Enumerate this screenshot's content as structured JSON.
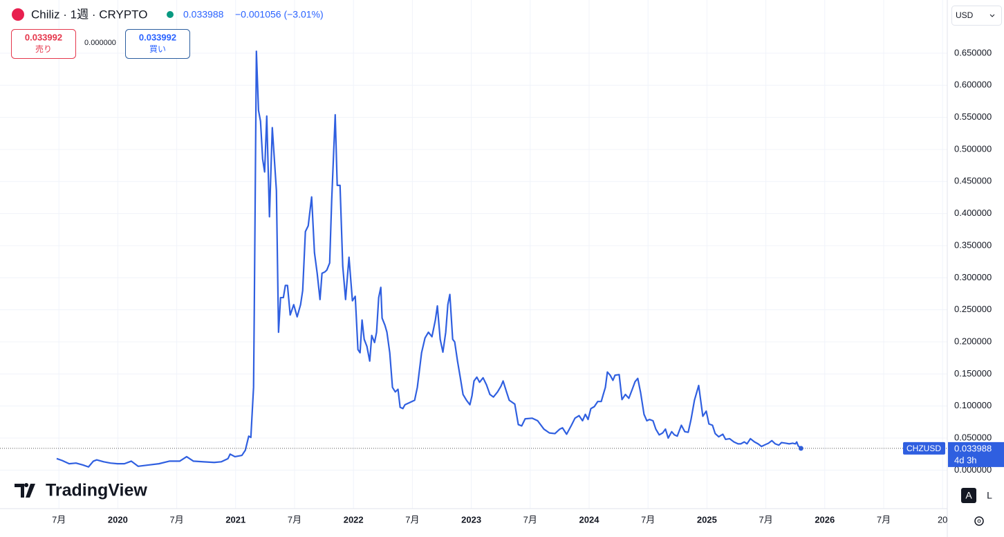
{
  "header": {
    "symbol_title": "Chiliz · 1週 · CRYPTO",
    "last": "0.033988",
    "change": "−0.001056 (−3.01%)"
  },
  "trade_panel": {
    "sell_price": "0.033992",
    "sell_label": "売り",
    "spread": "0.000000",
    "buy_price": "0.033992",
    "buy_label": "買い"
  },
  "currency": "USD",
  "last_price": {
    "value": 0.033988,
    "countdown": "4d 3h"
  },
  "scale_buttons": [
    "A",
    "L"
  ],
  "brand": "TradingView",
  "chart_data": {
    "type": "line",
    "x": [
      2019.481,
      2019.528,
      2019.587,
      2019.645,
      2019.704,
      2019.751,
      2019.792,
      2019.821,
      2019.88,
      2019.938,
      2019.997,
      2020.056,
      2020.114,
      2020.173,
      2020.261,
      2020.349,
      2020.437,
      2020.525,
      2020.584,
      2020.642,
      2020.73,
      2020.818,
      2020.877,
      2020.935,
      2020.953,
      2020.994,
      2021.053,
      2021.082,
      2021.111,
      2021.129,
      2021.152,
      2021.158,
      2021.176,
      2021.194,
      2021.211,
      2021.229,
      2021.246,
      2021.264,
      2021.287,
      2021.311,
      2021.346,
      2021.364,
      2021.381,
      2021.405,
      2021.422,
      2021.44,
      2021.463,
      2021.493,
      2021.522,
      2021.551,
      2021.569,
      2021.592,
      2021.616,
      2021.645,
      2021.669,
      2021.692,
      2021.716,
      2021.733,
      2021.757,
      2021.774,
      2021.798,
      2021.815,
      2021.845,
      2021.862,
      2021.886,
      2021.909,
      2021.933,
      2021.962,
      2021.991,
      2022.015,
      2022.038,
      2022.056,
      2022.073,
      2022.091,
      2022.114,
      2022.138,
      2022.155,
      2022.179,
      2022.196,
      2022.214,
      2022.232,
      2022.243,
      2022.267,
      2022.284,
      2022.308,
      2022.331,
      2022.355,
      2022.378,
      2022.396,
      2022.419,
      2022.437,
      2022.472,
      2022.519,
      2022.542,
      2022.578,
      2022.607,
      2022.636,
      2022.666,
      2022.695,
      2022.712,
      2022.736,
      2022.759,
      2022.783,
      2022.801,
      2022.818,
      2022.842,
      2022.859,
      2022.883,
      2022.906,
      2022.93,
      2022.959,
      2022.988,
      2023.006,
      2023.023,
      2023.047,
      2023.07,
      2023.1,
      2023.129,
      2023.158,
      2023.188,
      2023.223,
      2023.252,
      2023.27,
      2023.299,
      2023.322,
      2023.369,
      2023.399,
      2023.428,
      2023.457,
      2023.516,
      2023.563,
      2023.616,
      2023.663,
      2023.71,
      2023.751,
      2023.774,
      2023.809,
      2023.85,
      2023.88,
      2023.915,
      2023.944,
      2023.968,
      2023.991,
      2024.015,
      2024.044,
      2024.073,
      2024.103,
      2024.12,
      2024.138,
      2024.155,
      2024.179,
      2024.202,
      2024.22,
      2024.255,
      2024.279,
      2024.308,
      2024.337,
      2024.366,
      2024.39,
      2024.413,
      2024.437,
      2024.466,
      2024.49,
      2024.513,
      2024.542,
      2024.566,
      2024.595,
      2024.624,
      2024.648,
      2024.671,
      2024.701,
      2024.724,
      2024.748,
      2024.783,
      2024.812,
      2024.841,
      2024.865,
      2024.894,
      2024.93,
      2024.965,
      2024.994,
      2025.017,
      2025.047,
      2025.07,
      2025.1,
      2025.135,
      2025.158,
      2025.193,
      2025.229,
      2025.264,
      2025.287,
      2025.317,
      2025.34,
      2025.369,
      2025.404,
      2025.434,
      2025.463,
      2025.498,
      2025.522,
      2025.551,
      2025.58,
      2025.61,
      2025.633,
      2025.668,
      2025.698,
      2025.727,
      2025.751,
      2025.762,
      2025.774,
      2025.798
    ],
    "series": [
      {
        "name": "CHZUSD",
        "color": "#2f5fe0",
        "values": [
          0.018,
          0.015,
          0.01,
          0.011,
          0.008,
          0.005,
          0.014,
          0.016,
          0.013,
          0.011,
          0.01,
          0.01,
          0.014,
          0.006,
          0.008,
          0.01,
          0.014,
          0.014,
          0.021,
          0.014,
          0.013,
          0.012,
          0.013,
          0.018,
          0.025,
          0.021,
          0.023,
          0.031,
          0.053,
          0.051,
          0.129,
          0.247,
          0.653,
          0.561,
          0.544,
          0.485,
          0.465,
          0.552,
          0.395,
          0.534,
          0.436,
          0.215,
          0.269,
          0.269,
          0.288,
          0.288,
          0.242,
          0.258,
          0.239,
          0.258,
          0.28,
          0.372,
          0.381,
          0.426,
          0.339,
          0.307,
          0.266,
          0.307,
          0.309,
          0.312,
          0.323,
          0.42,
          0.554,
          0.444,
          0.444,
          0.318,
          0.266,
          0.332,
          0.264,
          0.271,
          0.188,
          0.183,
          0.234,
          0.204,
          0.193,
          0.17,
          0.21,
          0.199,
          0.215,
          0.269,
          0.285,
          0.237,
          0.226,
          0.215,
          0.183,
          0.129,
          0.122,
          0.126,
          0.098,
          0.096,
          0.102,
          0.105,
          0.109,
          0.129,
          0.183,
          0.206,
          0.215,
          0.208,
          0.234,
          0.256,
          0.204,
          0.184,
          0.215,
          0.258,
          0.274,
          0.204,
          0.2,
          0.17,
          0.145,
          0.118,
          0.109,
          0.102,
          0.116,
          0.139,
          0.145,
          0.137,
          0.144,
          0.133,
          0.118,
          0.114,
          0.122,
          0.131,
          0.139,
          0.122,
          0.109,
          0.103,
          0.071,
          0.069,
          0.08,
          0.081,
          0.077,
          0.064,
          0.058,
          0.057,
          0.064,
          0.066,
          0.056,
          0.07,
          0.081,
          0.085,
          0.077,
          0.087,
          0.079,
          0.096,
          0.099,
          0.107,
          0.107,
          0.118,
          0.129,
          0.153,
          0.148,
          0.14,
          0.148,
          0.149,
          0.11,
          0.118,
          0.112,
          0.126,
          0.138,
          0.143,
          0.121,
          0.087,
          0.077,
          0.079,
          0.077,
          0.064,
          0.055,
          0.058,
          0.064,
          0.05,
          0.06,
          0.055,
          0.053,
          0.07,
          0.06,
          0.059,
          0.079,
          0.109,
          0.132,
          0.084,
          0.092,
          0.072,
          0.07,
          0.057,
          0.052,
          0.056,
          0.048,
          0.049,
          0.044,
          0.041,
          0.041,
          0.044,
          0.041,
          0.049,
          0.044,
          0.041,
          0.037,
          0.04,
          0.042,
          0.046,
          0.041,
          0.039,
          0.043,
          0.042,
          0.041,
          0.042,
          0.041,
          0.044,
          0.038,
          0.033988
        ]
      }
    ],
    "xlim": [
      2019.0,
      2027.04
    ],
    "ylim": [
      -0.06,
      0.733
    ],
    "xticks": [
      {
        "value": 2019.5,
        "label": "7月"
      },
      2020,
      {
        "value": 2020.5,
        "label": "7月"
      },
      2021,
      {
        "value": 2021.5,
        "label": "7月"
      },
      2022,
      {
        "value": 2022.5,
        "label": "7月"
      },
      2023,
      {
        "value": 2023.5,
        "label": "7月"
      },
      2024,
      {
        "value": 2024.5,
        "label": "7月"
      },
      2025,
      {
        "value": 2025.5,
        "label": "7月"
      },
      2026,
      {
        "value": 2026.5,
        "label": "7月"
      },
      {
        "value": 2027,
        "label": "20"
      }
    ],
    "yticks": [
      {
        "value": 0,
        "label": "0.000000"
      },
      {
        "value": 0.05,
        "label": "0.050000"
      },
      {
        "value": 0.1,
        "label": "0.100000"
      },
      {
        "value": 0.15,
        "label": "0.150000"
      },
      {
        "value": 0.2,
        "label": "0.200000"
      },
      {
        "value": 0.25,
        "label": "0.250000"
      },
      {
        "value": 0.3,
        "label": "0.300000"
      },
      {
        "value": 0.35,
        "label": "0.350000"
      },
      {
        "value": 0.4,
        "label": "0.400000"
      },
      {
        "value": 0.45,
        "label": "0.450000"
      },
      {
        "value": 0.5,
        "label": "0.500000"
      },
      {
        "value": 0.55,
        "label": "0.550000"
      },
      {
        "value": 0.6,
        "label": "0.600000"
      },
      {
        "value": 0.65,
        "label": "0.650000"
      }
    ],
    "grid": true
  }
}
